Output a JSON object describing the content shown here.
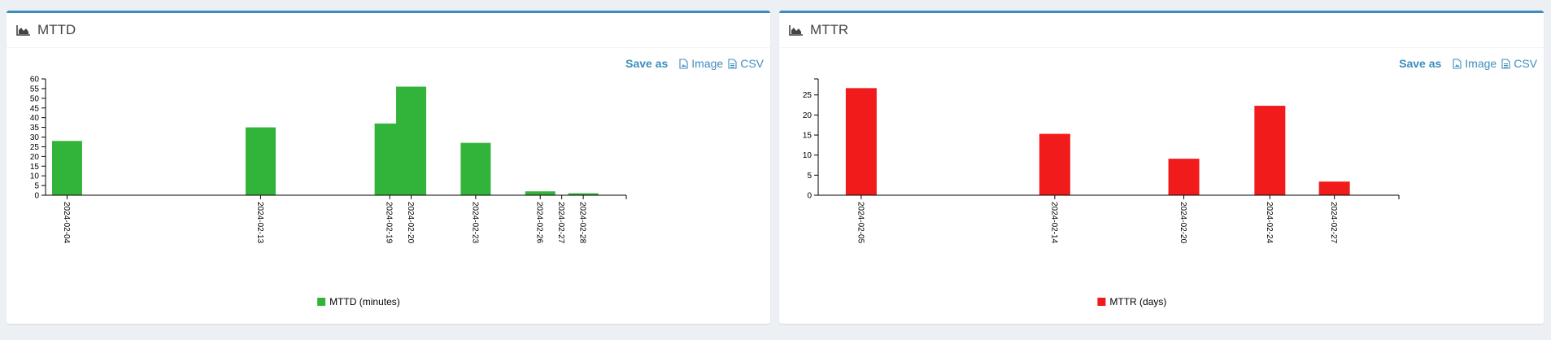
{
  "save_as_label": "Save as",
  "image_link": "Image",
  "csv_link": "CSV",
  "colors": {
    "header_border": "#3c8dbc",
    "link": "#3c8dbc"
  },
  "icons": {
    "header": "area-chart-icon",
    "file": "file-image-icon",
    "csv": "file-text-icon"
  },
  "charts": [
    {
      "id": "mttd",
      "title": "MTTD",
      "chart_data": {
        "type": "bar",
        "x": [
          "2024-02-04",
          "2024-02-13",
          "2024-02-19",
          "2024-02-20",
          "2024-02-23",
          "2024-02-26",
          "2024-02-27",
          "2024-02-28"
        ],
        "series": [
          {
            "name": "MTTD (minutes)",
            "color": "#32b43a",
            "values": [
              28,
              35,
              37,
              56,
              27,
              2,
              0,
              1
            ]
          }
        ],
        "ylim": [
          0,
          60
        ],
        "yticks": [
          0,
          5,
          10,
          15,
          20,
          25,
          30,
          35,
          40,
          45,
          50,
          55,
          60
        ],
        "xlim": [
          "2024-02-03",
          "2024-03-01"
        ],
        "legend": "bottom-center",
        "grid": false
      }
    },
    {
      "id": "mttr",
      "title": "MTTR",
      "chart_data": {
        "type": "bar",
        "x": [
          "2024-02-05",
          "2024-02-14",
          "2024-02-20",
          "2024-02-24",
          "2024-02-27"
        ],
        "series": [
          {
            "name": "MTTR (days)",
            "color": "#f21b1b",
            "values": [
              26.7,
              15.3,
              9.1,
              22.3,
              3.4
            ]
          }
        ],
        "ylim": [
          0,
          29
        ],
        "yticks": [
          0,
          5,
          10,
          15,
          20,
          25
        ],
        "xlim": [
          "2024-02-03",
          "2024-03-01"
        ],
        "legend": "bottom-center",
        "grid": false
      }
    }
  ]
}
